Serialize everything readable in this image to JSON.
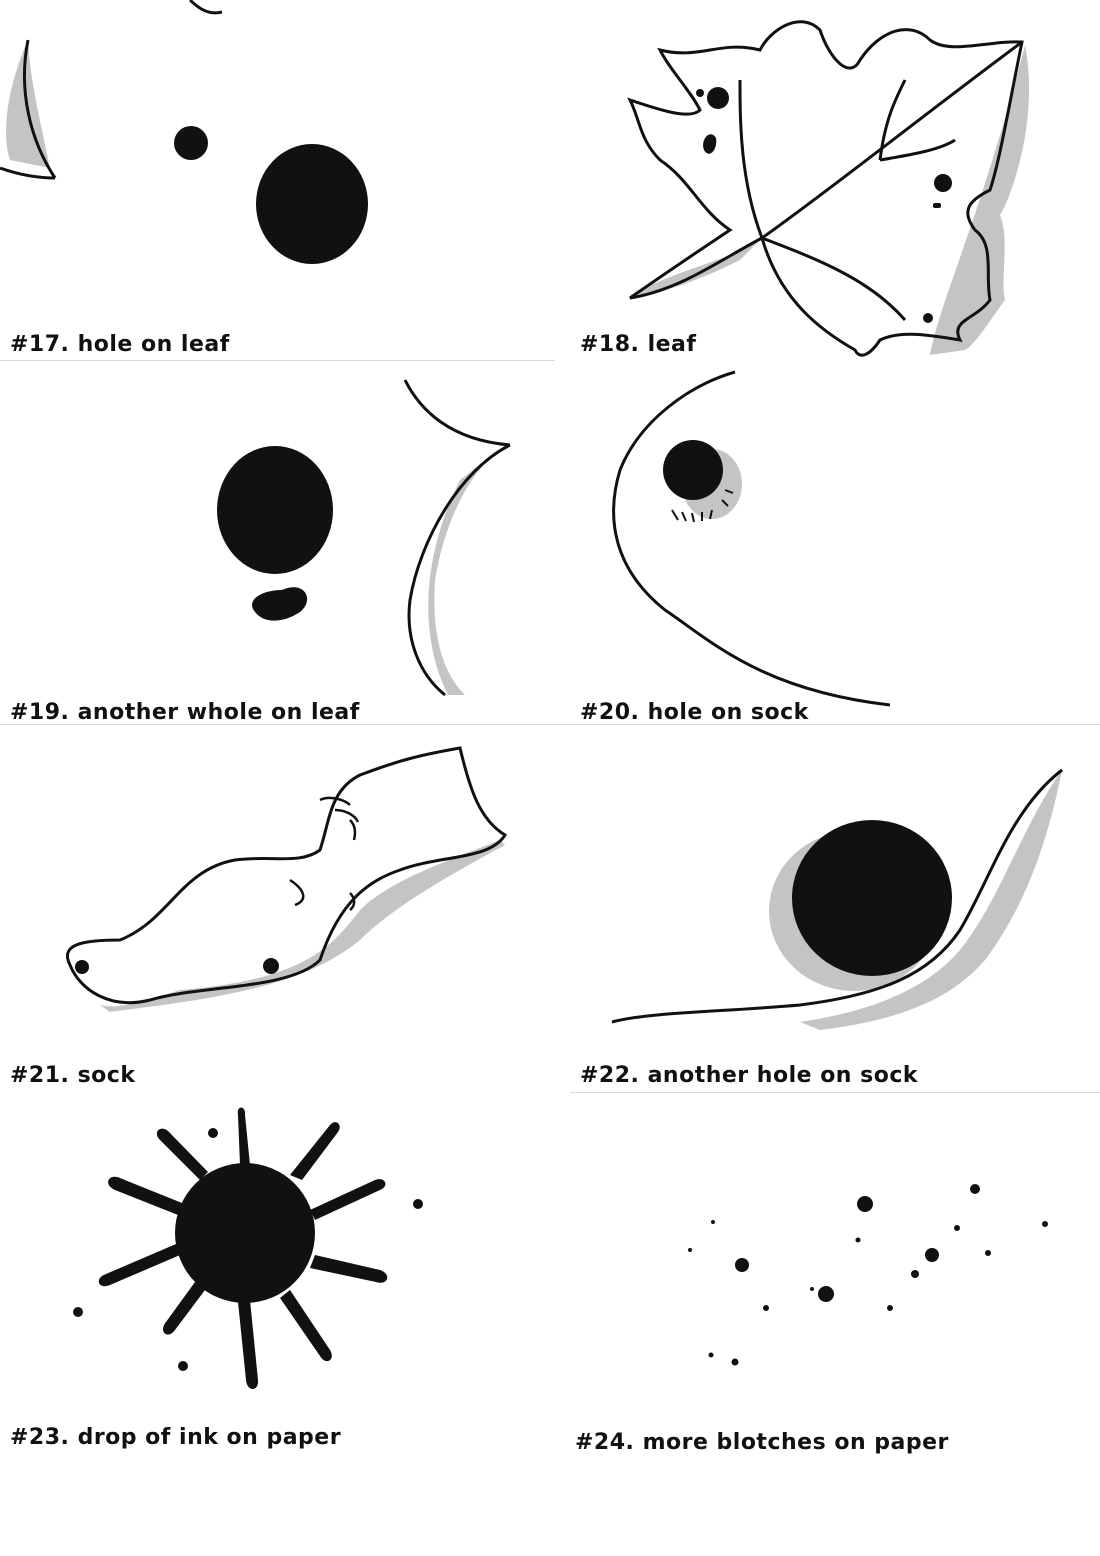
{
  "colors": {
    "ink": "#111111",
    "shadow": "#c4c4c4",
    "paper": "#ffffff"
  },
  "panels": [
    {
      "id": "17",
      "caption": "#17. hole on leaf"
    },
    {
      "id": "18",
      "caption": "#18. leaf"
    },
    {
      "id": "19",
      "caption": "#19. another whole on leaf"
    },
    {
      "id": "20",
      "caption": "#20. hole on sock"
    },
    {
      "id": "21",
      "caption": "#21. sock"
    },
    {
      "id": "22",
      "caption": "#22. another hole on sock"
    },
    {
      "id": "23",
      "caption": "#23. drop of ink on paper"
    },
    {
      "id": "24",
      "caption": "#24. more blotches on paper"
    }
  ]
}
